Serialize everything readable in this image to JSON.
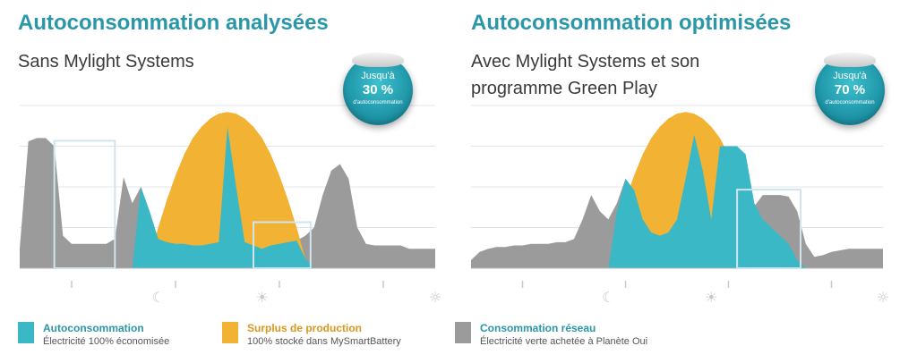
{
  "colors": {
    "autoconsommation": "#3bb8c6",
    "surplus": "#f2b233",
    "reseau": "#9b9b9b",
    "title": "#2a97a8",
    "grid": "#e0e4e7",
    "window": "#cfe4ef",
    "icon": "#c9c9c9"
  },
  "panels": [
    {
      "title": "Autoconsommation analysées",
      "subtitle": "Sans Mylight Systems",
      "badge": {
        "line1": "Jusqu'à",
        "value": "30 %",
        "line3": "d'autoconsommation"
      },
      "time_icons": [
        "moon-icon",
        "sunrise-icon",
        "sun-icon",
        "sunrise-icon",
        "moon-icon"
      ]
    },
    {
      "title": "Autoconsommation optimisées",
      "subtitle": "Avec Mylight Systems et son programme Green Play",
      "badge": {
        "line1": "Jusqu'à",
        "value": "70 %",
        "line3": "d'autoconsommation"
      },
      "time_icons": [
        "moon-icon",
        "sunrise-icon",
        "sun-icon",
        "sunrise-icon",
        "moon-icon"
      ]
    }
  ],
  "legend": [
    {
      "title": "Autoconsommation",
      "subtitle": "Électricité 100% économisée",
      "color": "#3bb8c6",
      "title_color": "#2a97a8"
    },
    {
      "title": "Surplus de production",
      "subtitle": "100% stocké dans MySmartBattery",
      "color": "#f2b233",
      "title_color": "#d9971c"
    },
    {
      "title": "Consommation réseau",
      "subtitle": "Électricité verte achetée à Planète Oui",
      "color": "#9b9b9b",
      "title_color": "#2a97a8"
    }
  ],
  "chart_data": [
    {
      "type": "area",
      "title": "Autoconsommation analysées",
      "x": [
        0,
        0.5,
        1,
        1.5,
        2,
        2.5,
        3,
        3.5,
        4,
        4.5,
        5,
        5.5,
        6,
        6.5,
        7,
        7.5,
        8,
        8.5,
        9,
        9.5,
        10,
        10.5,
        11,
        11.5,
        12,
        12.5,
        13,
        13.5,
        14,
        14.5,
        15,
        15.5,
        16,
        16.5,
        17,
        17.5,
        18,
        18.5,
        19,
        19.5,
        20,
        20.5,
        21,
        21.5,
        22,
        22.5,
        23,
        23.5,
        24
      ],
      "series": [
        {
          "name": "Consommation réseau",
          "values": [
            0.12,
            0.78,
            0.8,
            0.8,
            0.75,
            0.2,
            0.15,
            0.15,
            0.15,
            0.15,
            0.15,
            0.18,
            0.56,
            0.4,
            0.5,
            0.35,
            0.18,
            0.16,
            0.15,
            0.15,
            0.14,
            0.14,
            0.15,
            0.16,
            0.87,
            0.5,
            0.16,
            0.14,
            0.12,
            0.14,
            0.15,
            0.16,
            0.17,
            0.2,
            0.25,
            0.45,
            0.6,
            0.64,
            0.55,
            0.25,
            0.15,
            0.14,
            0.14,
            0.14,
            0.14,
            0.12,
            0.12,
            0.12,
            0.12
          ]
        },
        {
          "name": "Surplus de production",
          "values": [
            0,
            0,
            0,
            0,
            0,
            0,
            0,
            0,
            0,
            0,
            0,
            0,
            0,
            0,
            0,
            0.06,
            0.25,
            0.42,
            0.57,
            0.7,
            0.8,
            0.87,
            0.92,
            0.95,
            0.96,
            0.95,
            0.92,
            0.87,
            0.8,
            0.7,
            0.57,
            0.42,
            0.25,
            0.06,
            0,
            0,
            0,
            0,
            0,
            0,
            0,
            0,
            0,
            0,
            0,
            0,
            0,
            0,
            0
          ]
        },
        {
          "name": "Autoconsommation",
          "values": [
            0,
            0,
            0,
            0,
            0,
            0,
            0,
            0,
            0,
            0,
            0,
            0,
            0,
            0,
            0.5,
            0.35,
            0.18,
            0.16,
            0.15,
            0.15,
            0.14,
            0.14,
            0.15,
            0.16,
            0.87,
            0.5,
            0.16,
            0.14,
            0.12,
            0.14,
            0.15,
            0.16,
            0.17,
            0.06,
            0,
            0,
            0,
            0,
            0,
            0,
            0,
            0,
            0,
            0,
            0,
            0,
            0,
            0,
            0
          ]
        }
      ],
      "ylim": [
        0,
        1
      ]
    },
    {
      "type": "area",
      "title": "Autoconsommation optimisées",
      "x": [
        0,
        0.5,
        1,
        1.5,
        2,
        2.5,
        3,
        3.5,
        4,
        4.5,
        5,
        5.5,
        6,
        6.5,
        7,
        7.5,
        8,
        8.5,
        9,
        9.5,
        10,
        10.5,
        11,
        11.5,
        12,
        12.5,
        13,
        13.5,
        14,
        14.5,
        15,
        15.5,
        16,
        16.5,
        17,
        17.5,
        18,
        18.5,
        19,
        19.5,
        20,
        20.5,
        21,
        21.5,
        22,
        22.5,
        23,
        23.5,
        24
      ],
      "series": [
        {
          "name": "Consommation réseau",
          "values": [
            0.05,
            0.1,
            0.12,
            0.13,
            0.13,
            0.14,
            0.14,
            0.15,
            0.15,
            0.15,
            0.16,
            0.16,
            0.18,
            0.3,
            0.45,
            0.35,
            0.3,
            0.4,
            0.55,
            0.48,
            0.3,
            0.22,
            0.2,
            0.22,
            0.3,
            0.55,
            0.82,
            0.6,
            0.3,
            0.22,
            0.2,
            0.22,
            0.28,
            0.38,
            0.45,
            0.45,
            0.45,
            0.44,
            0.35,
            0.15,
            0.07,
            0.08,
            0.1,
            0.11,
            0.12,
            0.12,
            0.12,
            0.12,
            0.12
          ]
        },
        {
          "name": "Surplus de production",
          "values": [
            0,
            0,
            0,
            0,
            0,
            0,
            0,
            0,
            0,
            0,
            0,
            0,
            0,
            0,
            0,
            0,
            0,
            0.25,
            0.42,
            0.57,
            0.7,
            0.8,
            0.87,
            0.92,
            0.95,
            0.96,
            0.95,
            0.92,
            0.87,
            0.8,
            0.7,
            0.57,
            0.42,
            0.25,
            0.05,
            0,
            0,
            0,
            0,
            0,
            0,
            0,
            0,
            0,
            0,
            0,
            0,
            0,
            0
          ]
        },
        {
          "name": "Autoconsommation",
          "values": [
            0,
            0,
            0,
            0,
            0,
            0,
            0,
            0,
            0,
            0,
            0,
            0,
            0,
            0,
            0,
            0,
            0,
            0.35,
            0.55,
            0.48,
            0.3,
            0.22,
            0.2,
            0.22,
            0.3,
            0.55,
            0.82,
            0.6,
            0.3,
            0.75,
            0.75,
            0.75,
            0.7,
            0.4,
            0.3,
            0.25,
            0.2,
            0.15,
            0.05,
            0,
            0,
            0,
            0,
            0,
            0,
            0,
            0,
            0,
            0
          ]
        }
      ],
      "ylim": [
        0,
        1
      ]
    }
  ]
}
